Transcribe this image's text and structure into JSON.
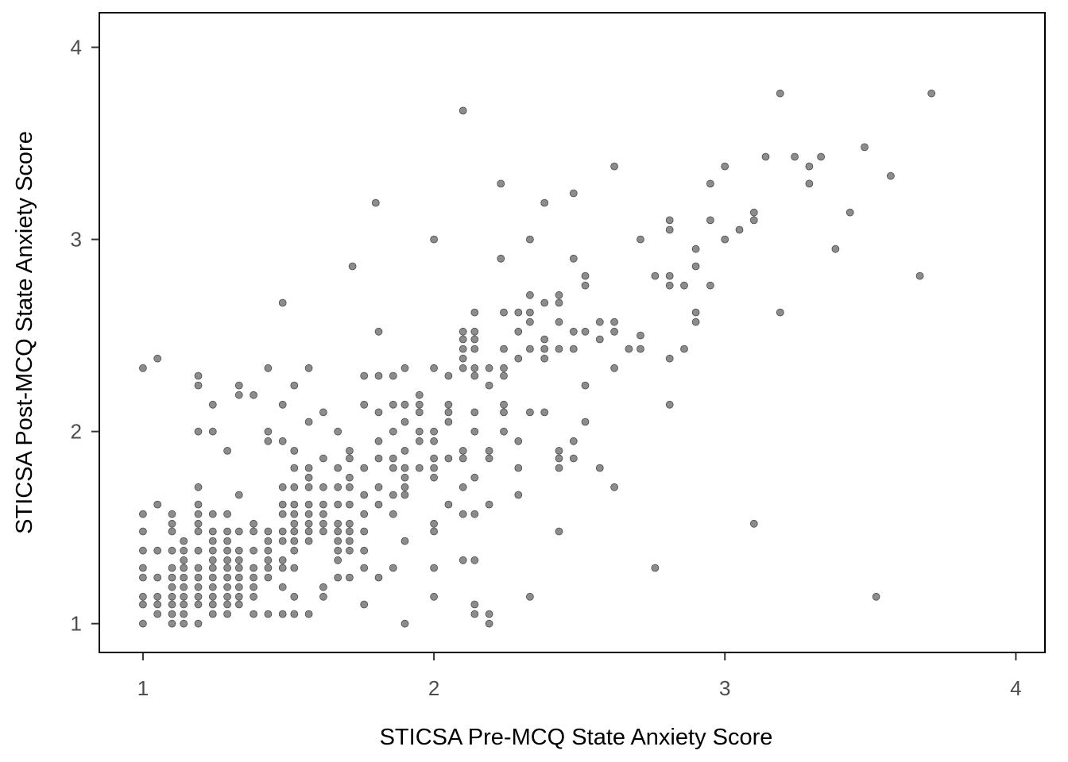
{
  "chart_data": {
    "type": "scatter",
    "title": "",
    "xlabel": "STICSA Pre-MCQ State Anxiety Score",
    "ylabel": "STICSA Post-MCQ State Anxiety Score",
    "xlim": [
      0.85,
      4.1
    ],
    "ylim": [
      0.85,
      4.18
    ],
    "x_ticks": [
      "1",
      "2",
      "3",
      "4"
    ],
    "y_ticks": [
      "1",
      "2",
      "3",
      "4"
    ],
    "grid": false,
    "legend": "none",
    "point_color": "#000000",
    "point_opacity": 0.45,
    "points": [
      [
        1.0,
        2.33
      ],
      [
        1.05,
        2.38
      ],
      [
        1.48,
        2.67
      ],
      [
        2.1,
        3.67
      ],
      [
        1.8,
        3.19
      ],
      [
        1.72,
        2.86
      ],
      [
        2.0,
        3.0
      ],
      [
        2.33,
        3.0
      ],
      [
        2.23,
        3.29
      ],
      [
        2.38,
        3.19
      ],
      [
        2.48,
        3.24
      ],
      [
        2.23,
        2.9
      ],
      [
        2.48,
        2.9
      ],
      [
        2.62,
        3.38
      ],
      [
        2.71,
        3.0
      ],
      [
        2.81,
        3.1
      ],
      [
        2.81,
        3.05
      ],
      [
        2.95,
        3.29
      ],
      [
        2.95,
        3.1
      ],
      [
        3.0,
        3.38
      ],
      [
        3.05,
        3.05
      ],
      [
        3.0,
        3.0
      ],
      [
        3.1,
        3.14
      ],
      [
        3.1,
        3.1
      ],
      [
        3.14,
        3.43
      ],
      [
        3.19,
        3.76
      ],
      [
        3.24,
        3.43
      ],
      [
        3.29,
        3.38
      ],
      [
        3.29,
        3.29
      ],
      [
        3.33,
        3.43
      ],
      [
        3.48,
        3.48
      ],
      [
        3.43,
        3.14
      ],
      [
        3.57,
        3.33
      ],
      [
        3.71,
        3.76
      ],
      [
        3.38,
        2.95
      ],
      [
        3.67,
        2.81
      ],
      [
        3.19,
        2.62
      ],
      [
        3.1,
        1.52
      ],
      [
        3.52,
        1.14
      ],
      [
        2.76,
        1.29
      ],
      [
        2.33,
        1.14
      ],
      [
        2.43,
        1.48
      ],
      [
        2.62,
        1.71
      ],
      [
        2.57,
        1.81
      ],
      [
        2.76,
        2.81
      ],
      [
        2.81,
        2.81
      ],
      [
        2.86,
        2.76
      ],
      [
        2.81,
        2.76
      ],
      [
        2.9,
        2.86
      ],
      [
        2.95,
        2.76
      ],
      [
        2.9,
        2.95
      ],
      [
        2.9,
        2.62
      ],
      [
        2.9,
        2.57
      ],
      [
        2.86,
        2.43
      ],
      [
        2.81,
        2.38
      ],
      [
        2.81,
        2.14
      ],
      [
        2.71,
        2.5
      ],
      [
        2.71,
        2.43
      ],
      [
        2.67,
        2.43
      ],
      [
        2.62,
        2.57
      ],
      [
        2.62,
        2.52
      ],
      [
        2.62,
        2.33
      ],
      [
        2.57,
        2.57
      ],
      [
        2.57,
        2.48
      ],
      [
        2.52,
        2.81
      ],
      [
        2.52,
        2.76
      ],
      [
        2.52,
        2.52
      ],
      [
        2.52,
        2.24
      ],
      [
        2.52,
        2.05
      ],
      [
        2.48,
        2.52
      ],
      [
        2.48,
        2.43
      ],
      [
        2.48,
        1.95
      ],
      [
        2.48,
        1.86
      ],
      [
        2.43,
        2.71
      ],
      [
        2.43,
        2.67
      ],
      [
        2.43,
        2.57
      ],
      [
        2.43,
        2.43
      ],
      [
        2.43,
        1.9
      ],
      [
        2.43,
        1.86
      ],
      [
        2.43,
        1.81
      ],
      [
        2.38,
        2.67
      ],
      [
        2.38,
        2.48
      ],
      [
        2.38,
        2.43
      ],
      [
        2.38,
        2.38
      ],
      [
        2.38,
        2.1
      ],
      [
        2.33,
        2.71
      ],
      [
        2.33,
        2.62
      ],
      [
        2.33,
        2.57
      ],
      [
        2.33,
        2.43
      ],
      [
        2.33,
        2.1
      ],
      [
        2.29,
        2.62
      ],
      [
        2.29,
        2.52
      ],
      [
        2.29,
        2.38
      ],
      [
        2.29,
        1.81
      ],
      [
        2.29,
        1.67
      ],
      [
        2.29,
        1.95
      ],
      [
        2.24,
        2.62
      ],
      [
        2.24,
        2.43
      ],
      [
        2.24,
        2.33
      ],
      [
        2.24,
        2.29
      ],
      [
        2.24,
        2.14
      ],
      [
        2.24,
        2.1
      ],
      [
        2.24,
        2.0
      ],
      [
        2.19,
        2.33
      ],
      [
        2.19,
        2.24
      ],
      [
        2.19,
        1.9
      ],
      [
        2.19,
        1.86
      ],
      [
        2.19,
        1.62
      ],
      [
        2.14,
        2.62
      ],
      [
        2.14,
        2.52
      ],
      [
        2.14,
        2.48
      ],
      [
        2.14,
        2.43
      ],
      [
        2.14,
        2.33
      ],
      [
        2.14,
        2.29
      ],
      [
        2.14,
        2.1
      ],
      [
        2.14,
        2.0
      ],
      [
        2.14,
        1.76
      ],
      [
        2.14,
        1.57
      ],
      [
        2.14,
        1.33
      ],
      [
        2.1,
        2.52
      ],
      [
        2.1,
        2.48
      ],
      [
        2.1,
        2.43
      ],
      [
        2.1,
        2.38
      ],
      [
        2.1,
        2.33
      ],
      [
        2.1,
        1.9
      ],
      [
        2.1,
        1.86
      ],
      [
        2.1,
        1.71
      ],
      [
        2.1,
        1.57
      ],
      [
        2.1,
        1.33
      ],
      [
        2.05,
        2.29
      ],
      [
        2.05,
        2.14
      ],
      [
        2.05,
        2.1
      ],
      [
        2.05,
        2.05
      ],
      [
        2.05,
        1.86
      ],
      [
        2.05,
        1.62
      ],
      [
        2.0,
        2.33
      ],
      [
        2.0,
        2.0
      ],
      [
        2.0,
        1.95
      ],
      [
        2.0,
        1.86
      ],
      [
        2.0,
        1.81
      ],
      [
        2.0,
        1.76
      ],
      [
        2.0,
        1.52
      ],
      [
        2.0,
        1.48
      ],
      [
        2.0,
        1.29
      ],
      [
        2.0,
        1.14
      ],
      [
        1.95,
        2.19
      ],
      [
        1.95,
        2.14
      ],
      [
        1.95,
        2.1
      ],
      [
        1.95,
        2.0
      ],
      [
        1.95,
        1.95
      ],
      [
        1.95,
        1.81
      ],
      [
        1.9,
        2.33
      ],
      [
        1.9,
        2.14
      ],
      [
        1.9,
        2.05
      ],
      [
        1.9,
        1.9
      ],
      [
        1.9,
        1.81
      ],
      [
        1.9,
        1.76
      ],
      [
        1.9,
        1.71
      ],
      [
        1.9,
        1.67
      ],
      [
        1.9,
        1.43
      ],
      [
        1.9,
        1.0
      ],
      [
        1.86,
        2.29
      ],
      [
        1.86,
        2.14
      ],
      [
        1.86,
        2.0
      ],
      [
        1.86,
        1.86
      ],
      [
        1.86,
        1.81
      ],
      [
        1.86,
        1.67
      ],
      [
        1.86,
        1.57
      ],
      [
        1.86,
        1.29
      ],
      [
        1.81,
        2.52
      ],
      [
        1.81,
        2.29
      ],
      [
        1.81,
        2.1
      ],
      [
        1.81,
        1.95
      ],
      [
        1.81,
        1.86
      ],
      [
        1.81,
        1.71
      ],
      [
        1.81,
        1.62
      ],
      [
        1.81,
        1.24
      ],
      [
        1.76,
        2.29
      ],
      [
        1.76,
        2.14
      ],
      [
        1.76,
        1.81
      ],
      [
        1.76,
        1.67
      ],
      [
        1.76,
        1.57
      ],
      [
        1.76,
        1.48
      ],
      [
        1.76,
        1.38
      ],
      [
        1.76,
        1.29
      ],
      [
        1.76,
        1.1
      ],
      [
        1.71,
        1.9
      ],
      [
        1.71,
        1.86
      ],
      [
        1.71,
        1.76
      ],
      [
        1.71,
        1.71
      ],
      [
        1.71,
        1.62
      ],
      [
        1.71,
        1.52
      ],
      [
        1.71,
        1.48
      ],
      [
        1.71,
        1.43
      ],
      [
        1.71,
        1.38
      ],
      [
        1.71,
        1.24
      ],
      [
        1.67,
        2.0
      ],
      [
        1.67,
        1.81
      ],
      [
        1.67,
        1.71
      ],
      [
        1.67,
        1.62
      ],
      [
        1.67,
        1.52
      ],
      [
        1.67,
        1.48
      ],
      [
        1.67,
        1.43
      ],
      [
        1.67,
        1.38
      ],
      [
        1.67,
        1.33
      ],
      [
        1.67,
        1.24
      ],
      [
        1.62,
        2.1
      ],
      [
        1.62,
        1.86
      ],
      [
        1.62,
        1.71
      ],
      [
        1.62,
        1.62
      ],
      [
        1.62,
        1.57
      ],
      [
        1.62,
        1.52
      ],
      [
        1.62,
        1.48
      ],
      [
        1.62,
        1.19
      ],
      [
        1.62,
        1.14
      ],
      [
        1.57,
        2.33
      ],
      [
        1.57,
        2.05
      ],
      [
        1.57,
        1.81
      ],
      [
        1.57,
        1.76
      ],
      [
        1.57,
        1.71
      ],
      [
        1.57,
        1.62
      ],
      [
        1.57,
        1.57
      ],
      [
        1.57,
        1.52
      ],
      [
        1.57,
        1.48
      ],
      [
        1.57,
        1.43
      ],
      [
        1.57,
        1.05
      ],
      [
        1.52,
        2.24
      ],
      [
        1.52,
        1.9
      ],
      [
        1.52,
        1.81
      ],
      [
        1.52,
        1.71
      ],
      [
        1.52,
        1.62
      ],
      [
        1.52,
        1.57
      ],
      [
        1.52,
        1.52
      ],
      [
        1.52,
        1.48
      ],
      [
        1.52,
        1.43
      ],
      [
        1.52,
        1.38
      ],
      [
        1.52,
        1.29
      ],
      [
        1.52,
        1.14
      ],
      [
        1.52,
        1.05
      ],
      [
        1.48,
        2.14
      ],
      [
        1.48,
        1.95
      ],
      [
        1.48,
        1.71
      ],
      [
        1.48,
        1.62
      ],
      [
        1.48,
        1.57
      ],
      [
        1.48,
        1.48
      ],
      [
        1.48,
        1.43
      ],
      [
        1.48,
        1.33
      ],
      [
        1.48,
        1.29
      ],
      [
        1.48,
        1.19
      ],
      [
        1.48,
        1.05
      ],
      [
        1.43,
        2.33
      ],
      [
        1.43,
        2.0
      ],
      [
        1.43,
        1.95
      ],
      [
        1.43,
        1.48
      ],
      [
        1.43,
        1.43
      ],
      [
        1.43,
        1.38
      ],
      [
        1.43,
        1.33
      ],
      [
        1.43,
        1.29
      ],
      [
        1.43,
        1.24
      ],
      [
        1.43,
        1.05
      ],
      [
        1.38,
        2.19
      ],
      [
        1.38,
        1.52
      ],
      [
        1.38,
        1.48
      ],
      [
        1.38,
        1.38
      ],
      [
        1.38,
        1.29
      ],
      [
        1.38,
        1.24
      ],
      [
        1.38,
        1.19
      ],
      [
        1.38,
        1.14
      ],
      [
        1.38,
        1.05
      ],
      [
        1.33,
        2.24
      ],
      [
        1.33,
        2.19
      ],
      [
        1.33,
        1.67
      ],
      [
        1.33,
        1.48
      ],
      [
        1.33,
        1.38
      ],
      [
        1.33,
        1.33
      ],
      [
        1.33,
        1.29
      ],
      [
        1.33,
        1.24
      ],
      [
        1.33,
        1.19
      ],
      [
        1.33,
        1.14
      ],
      [
        1.33,
        1.1
      ],
      [
        1.29,
        1.9
      ],
      [
        1.29,
        1.57
      ],
      [
        1.29,
        1.48
      ],
      [
        1.29,
        1.43
      ],
      [
        1.29,
        1.38
      ],
      [
        1.29,
        1.33
      ],
      [
        1.29,
        1.29
      ],
      [
        1.29,
        1.24
      ],
      [
        1.29,
        1.19
      ],
      [
        1.29,
        1.14
      ],
      [
        1.29,
        1.1
      ],
      [
        1.29,
        1.05
      ],
      [
        1.24,
        2.14
      ],
      [
        1.24,
        2.0
      ],
      [
        1.24,
        1.57
      ],
      [
        1.24,
        1.48
      ],
      [
        1.24,
        1.43
      ],
      [
        1.24,
        1.38
      ],
      [
        1.24,
        1.33
      ],
      [
        1.24,
        1.29
      ],
      [
        1.24,
        1.24
      ],
      [
        1.24,
        1.19
      ],
      [
        1.24,
        1.14
      ],
      [
        1.24,
        1.1
      ],
      [
        1.24,
        1.05
      ],
      [
        1.19,
        2.29
      ],
      [
        1.19,
        2.24
      ],
      [
        1.19,
        2.0
      ],
      [
        1.19,
        1.71
      ],
      [
        1.19,
        1.62
      ],
      [
        1.19,
        1.57
      ],
      [
        1.19,
        1.52
      ],
      [
        1.19,
        1.48
      ],
      [
        1.19,
        1.38
      ],
      [
        1.19,
        1.29
      ],
      [
        1.19,
        1.24
      ],
      [
        1.19,
        1.19
      ],
      [
        1.19,
        1.14
      ],
      [
        1.19,
        1.1
      ],
      [
        1.19,
        1.0
      ],
      [
        1.14,
        1.43
      ],
      [
        1.14,
        1.38
      ],
      [
        1.14,
        1.33
      ],
      [
        1.14,
        1.29
      ],
      [
        1.14,
        1.24
      ],
      [
        1.14,
        1.19
      ],
      [
        1.14,
        1.14
      ],
      [
        1.14,
        1.1
      ],
      [
        1.14,
        1.05
      ],
      [
        1.14,
        1.0
      ],
      [
        1.1,
        1.57
      ],
      [
        1.1,
        1.52
      ],
      [
        1.1,
        1.48
      ],
      [
        1.1,
        1.38
      ],
      [
        1.1,
        1.29
      ],
      [
        1.1,
        1.24
      ],
      [
        1.1,
        1.19
      ],
      [
        1.1,
        1.14
      ],
      [
        1.1,
        1.1
      ],
      [
        1.1,
        1.05
      ],
      [
        1.1,
        1.0
      ],
      [
        1.05,
        1.62
      ],
      [
        1.05,
        1.38
      ],
      [
        1.05,
        1.24
      ],
      [
        1.05,
        1.14
      ],
      [
        1.05,
        1.1
      ],
      [
        1.05,
        1.05
      ],
      [
        1.0,
        1.57
      ],
      [
        1.0,
        1.48
      ],
      [
        1.0,
        1.38
      ],
      [
        1.0,
        1.29
      ],
      [
        1.0,
        1.24
      ],
      [
        1.0,
        1.14
      ],
      [
        1.0,
        1.1
      ],
      [
        1.0,
        1.0
      ],
      [
        2.19,
        1.05
      ],
      [
        2.19,
        1.0
      ],
      [
        2.14,
        1.1
      ],
      [
        2.14,
        1.05
      ]
    ]
  }
}
